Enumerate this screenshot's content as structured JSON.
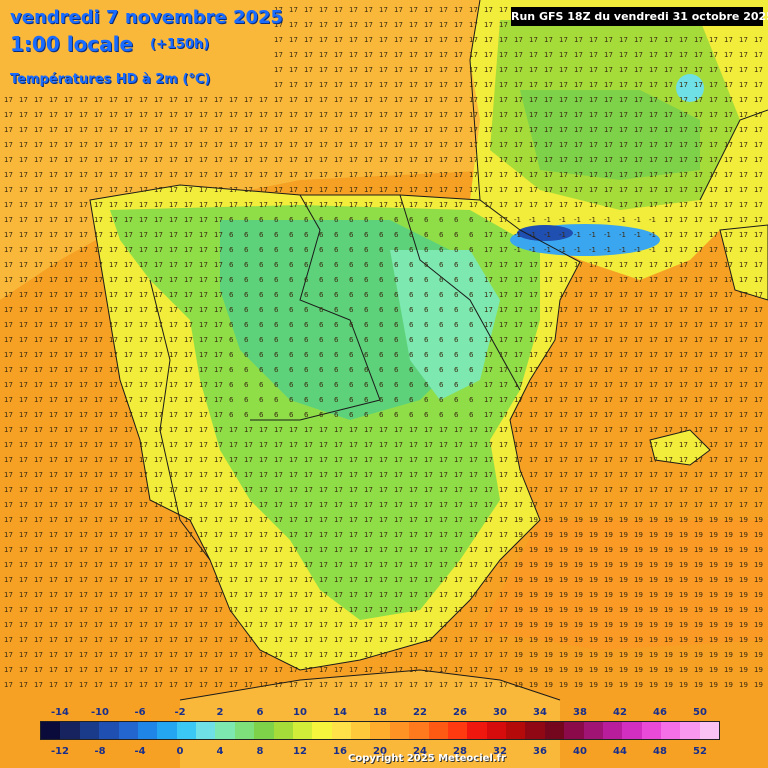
{
  "header": {
    "date_title": "vendredi 7 novembre 2025",
    "time_label": "1:00 locale",
    "lead_time": "(+150h)",
    "parameter": "Températures HD à 2m (°C)",
    "run_info": "Run GFS 18Z du vendredi 31 octobre 2025"
  },
  "legend": {
    "top_labels": [
      "-14",
      "-10",
      "-6",
      "-2",
      "2",
      "6",
      "10",
      "14",
      "18",
      "22",
      "26",
      "30",
      "34",
      "38",
      "42",
      "46",
      "50"
    ],
    "bottom_labels": [
      "-12",
      "-8",
      "-4",
      "0",
      "4",
      "8",
      "12",
      "16",
      "20",
      "24",
      "28",
      "32",
      "36",
      "40",
      "44",
      "48",
      "52"
    ],
    "colors": [
      "#0b0b3b",
      "#16235e",
      "#1a3a8a",
      "#1f4fb0",
      "#2466d0",
      "#1f86e8",
      "#25a6f0",
      "#3cc8f5",
      "#6ee0e6",
      "#7de8b0",
      "#7ee07a",
      "#7ed24a",
      "#a6dc3a",
      "#d2ec3a",
      "#f4f53c",
      "#ffe14a",
      "#ffc93c",
      "#ffad2c",
      "#ff9425",
      "#ff7a1c",
      "#ff5a14",
      "#ff3a10",
      "#f0180e",
      "#d60c0c",
      "#b40a0a",
      "#900814",
      "#74061e",
      "#8a0a4a",
      "#a01474",
      "#b81e9c",
      "#d22ec0",
      "#e94ad8",
      "#f570e6",
      "#f898ee",
      "#fbc2f4"
    ]
  },
  "map": {
    "colors": {
      "ocean_warm": "#f6a024",
      "ocean_mild": "#f9b83a",
      "land_yellow": "#f2ec3a",
      "land_green": "#8fde48",
      "land_cool": "#5ed27a",
      "cold_blue": "#3aa6f0",
      "deep_blue": "#1f4fb0",
      "border": "#1a1a1a"
    },
    "sample_values": {
      "atlantic": "17",
      "med": "19",
      "meseta": "6",
      "pyrenees": "-1"
    }
  },
  "footer": {
    "copyright": "Copyright 2025 Meteociel.fr"
  }
}
